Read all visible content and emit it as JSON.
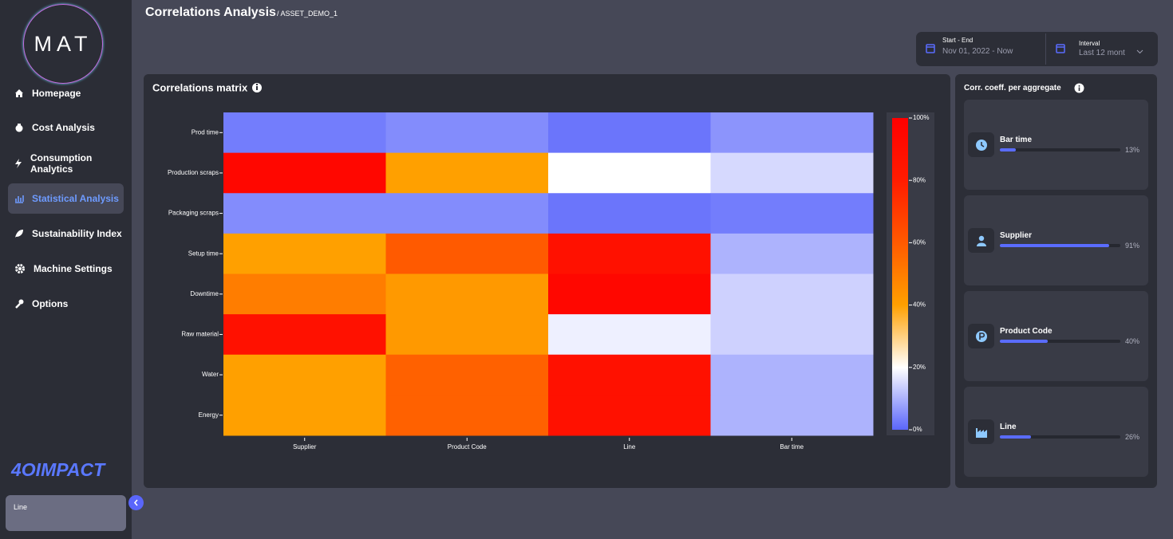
{
  "sidebar": {
    "logo": "MAT",
    "nav": [
      "Homepage",
      "Cost Analysis",
      "Consumption Analytics",
      "Statistical Analysis",
      "Sustainability Index",
      "Machine Settings",
      "Options"
    ],
    "active": "Statistical Analysis",
    "brand": "4OIMPACT",
    "selector": "Line"
  },
  "header": {
    "title": "Correlations Analysis",
    "subtitle": "/ ASSET_DEMO_1"
  },
  "filters": {
    "range_label": "Start - End",
    "range_value": "Nov 01, 2022 - Now",
    "interval_label": "Interval",
    "interval_value": "Last 12 mont"
  },
  "chart_data": {
    "type": "heatmap",
    "title": "Correlations matrix",
    "x_categories": [
      "Supplier",
      "Product Code",
      "Line",
      "Bar time"
    ],
    "y_categories": [
      "Prod time",
      "Production scraps",
      "Packaging scraps",
      "Setup time",
      "Downtime",
      "Raw material",
      "Water",
      "Energy"
    ],
    "z": [
      [
        3,
        5,
        2,
        6
      ],
      [
        95,
        40,
        20,
        15
      ],
      [
        5,
        5,
        2,
        3
      ],
      [
        40,
        60,
        88,
        10
      ],
      [
        50,
        42,
        95,
        14
      ],
      [
        88,
        42,
        18,
        14
      ],
      [
        40,
        58,
        88,
        10
      ],
      [
        40,
        58,
        88,
        10
      ]
    ],
    "zlim": [
      0,
      100
    ],
    "colorscale": [
      [
        0,
        "#5a66fb"
      ],
      [
        0.2,
        "#ffffff"
      ],
      [
        0.4,
        "#ffa000"
      ],
      [
        0.6,
        "#ff5a00"
      ],
      [
        0.8,
        "#ff1c00"
      ],
      [
        1,
        "#ff0000"
      ]
    ],
    "colorbar_ticks": [
      {
        "value": 0,
        "label": "0%"
      },
      {
        "value": 20,
        "label": "20%"
      },
      {
        "value": 40,
        "label": "40%"
      },
      {
        "value": 60,
        "label": "60%"
      },
      {
        "value": 80,
        "label": "80%"
      },
      {
        "value": 100,
        "label": "100%"
      }
    ]
  },
  "aggregates": {
    "title": "Corr. coeff. per aggregate",
    "items": [
      {
        "name": "Bar time",
        "value": 13,
        "label": "13%"
      },
      {
        "name": "Supplier",
        "value": 91,
        "label": "91%"
      },
      {
        "name": "Product Code",
        "value": 40,
        "label": "40%"
      },
      {
        "name": "Line",
        "value": 26,
        "label": "26%"
      }
    ]
  }
}
